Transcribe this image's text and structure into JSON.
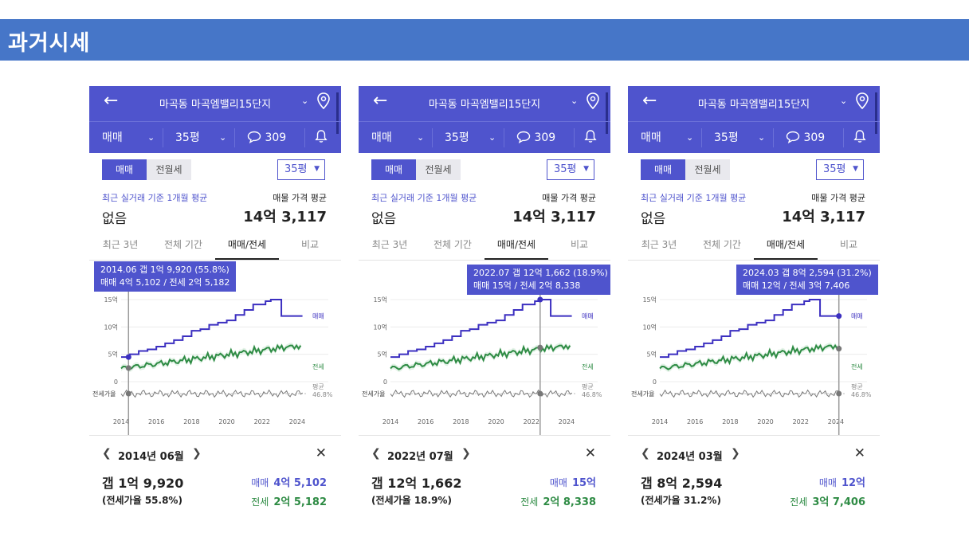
{
  "slide": {
    "title": "과거시세"
  },
  "colors": {
    "accent": "#4f54cd",
    "sale_line": "#3b2fc0",
    "jeonse_line": "#2e8b44",
    "banner": "#4676c8"
  },
  "panels": [
    {
      "header": {
        "back_icon": "arrow-left-icon",
        "complex_name": "마곡동 마곡엠밸리15단지",
        "pin_icon": "location-pin-icon"
      },
      "subbar": {
        "trade": "매매",
        "size": "35평",
        "comments": "309"
      },
      "segment": {
        "sale": "매매",
        "rent": "전월세"
      },
      "size_select": "35평",
      "summary": {
        "recent_label": "최근 실거래 기준 1개월 평균",
        "recent_value": "없음",
        "listing_label": "매물 가격 평균",
        "listing_value": "14억 3,117"
      },
      "tabs": [
        "최근 3년",
        "전체 기간",
        "매매/전세",
        "비교"
      ],
      "active_tab": 2,
      "tooltip": {
        "line1": "2014.06  갭 1억 9,920 (55.8%)",
        "line2": "매매 4억 5,102 / 전세 2억 5,182"
      },
      "chart_data": {
        "type": "line",
        "x_ticks": [
          "2014",
          "2016",
          "2018",
          "2020",
          "2022",
          "2024"
        ],
        "y_ticks": [
          "15억",
          "10억",
          "5억",
          "0"
        ],
        "series_labels": {
          "sale": "매매",
          "jeonse": "전세"
        },
        "ratio": {
          "label": "전세가율",
          "avg_label": "평균",
          "avg_value": "46.8%"
        },
        "selected_x": 2014.42
      },
      "footer": {
        "month": "2014년 06월",
        "gap": "갭 1억 9,920",
        "ratio": "(전세가율 55.8%)",
        "sale_label": "매매",
        "sale_value": "4억 5,102",
        "jeonse_label": "전세",
        "jeonse_value": "2억 5,182"
      }
    },
    {
      "header": {
        "back_icon": "arrow-left-icon",
        "complex_name": "마곡동 마곡엠밸리15단지",
        "pin_icon": "location-pin-icon"
      },
      "subbar": {
        "trade": "매매",
        "size": "35평",
        "comments": "309"
      },
      "segment": {
        "sale": "매매",
        "rent": "전월세"
      },
      "size_select": "35평",
      "summary": {
        "recent_label": "최근 실거래 기준 1개월 평균",
        "recent_value": "없음",
        "listing_label": "매물 가격 평균",
        "listing_value": "14억 3,117"
      },
      "tabs": [
        "최근 3년",
        "전체 기간",
        "매매/전세",
        "비교"
      ],
      "active_tab": 2,
      "tooltip": {
        "line1": "2022.07  갭 12억 1,662 (18.9%)",
        "line2": "매매 15억 / 전세 2억 8,338"
      },
      "chart_data": {
        "type": "line",
        "x_ticks": [
          "2014",
          "2016",
          "2018",
          "2020",
          "2022",
          "2024"
        ],
        "y_ticks": [
          "15억",
          "10억",
          "5억",
          "0"
        ],
        "series_labels": {
          "sale": "매매",
          "jeonse": "전세"
        },
        "ratio": {
          "label": "전세가율",
          "avg_label": "평균",
          "avg_value": "46.8%"
        },
        "selected_x": 2022.5
      },
      "footer": {
        "month": "2022년 07월",
        "gap": "갭 12억 1,662",
        "ratio": "(전세가율 18.9%)",
        "sale_label": "매매",
        "sale_value": "15억",
        "jeonse_label": "전세",
        "jeonse_value": "2억 8,338"
      }
    },
    {
      "header": {
        "back_icon": "arrow-left-icon",
        "complex_name": "마곡동 마곡엠밸리15단지",
        "pin_icon": "location-pin-icon"
      },
      "subbar": {
        "trade": "매매",
        "size": "35평",
        "comments": "309"
      },
      "segment": {
        "sale": "매매",
        "rent": "전월세"
      },
      "size_select": "35평",
      "summary": {
        "recent_label": "최근 실거래 기준 1개월 평균",
        "recent_value": "없음",
        "listing_label": "매물 가격 평균",
        "listing_value": "14억 3,117"
      },
      "tabs": [
        "최근 3년",
        "전체 기간",
        "매매/전세",
        "비교"
      ],
      "active_tab": 2,
      "tooltip": {
        "line1": "2024.03  갭 8억 2,594 (31.2%)",
        "line2": "매매 12억 / 전세 3억 7,406"
      },
      "chart_data": {
        "type": "line",
        "x_ticks": [
          "2014",
          "2016",
          "2018",
          "2020",
          "2022",
          "2024"
        ],
        "y_ticks": [
          "15억",
          "10억",
          "5억",
          "0"
        ],
        "series_labels": {
          "sale": "매매",
          "jeonse": "전세"
        },
        "ratio": {
          "label": "전세가율",
          "avg_label": "평균",
          "avg_value": "46.8%"
        },
        "selected_x": 2024.17
      },
      "footer": {
        "month": "2024년 03월",
        "gap": "갭 8억 2,594",
        "ratio": "(전세가율 31.2%)",
        "sale_label": "매매",
        "sale_value": "12억",
        "jeonse_label": "전세",
        "jeonse_value": "3억 7,406"
      }
    }
  ]
}
